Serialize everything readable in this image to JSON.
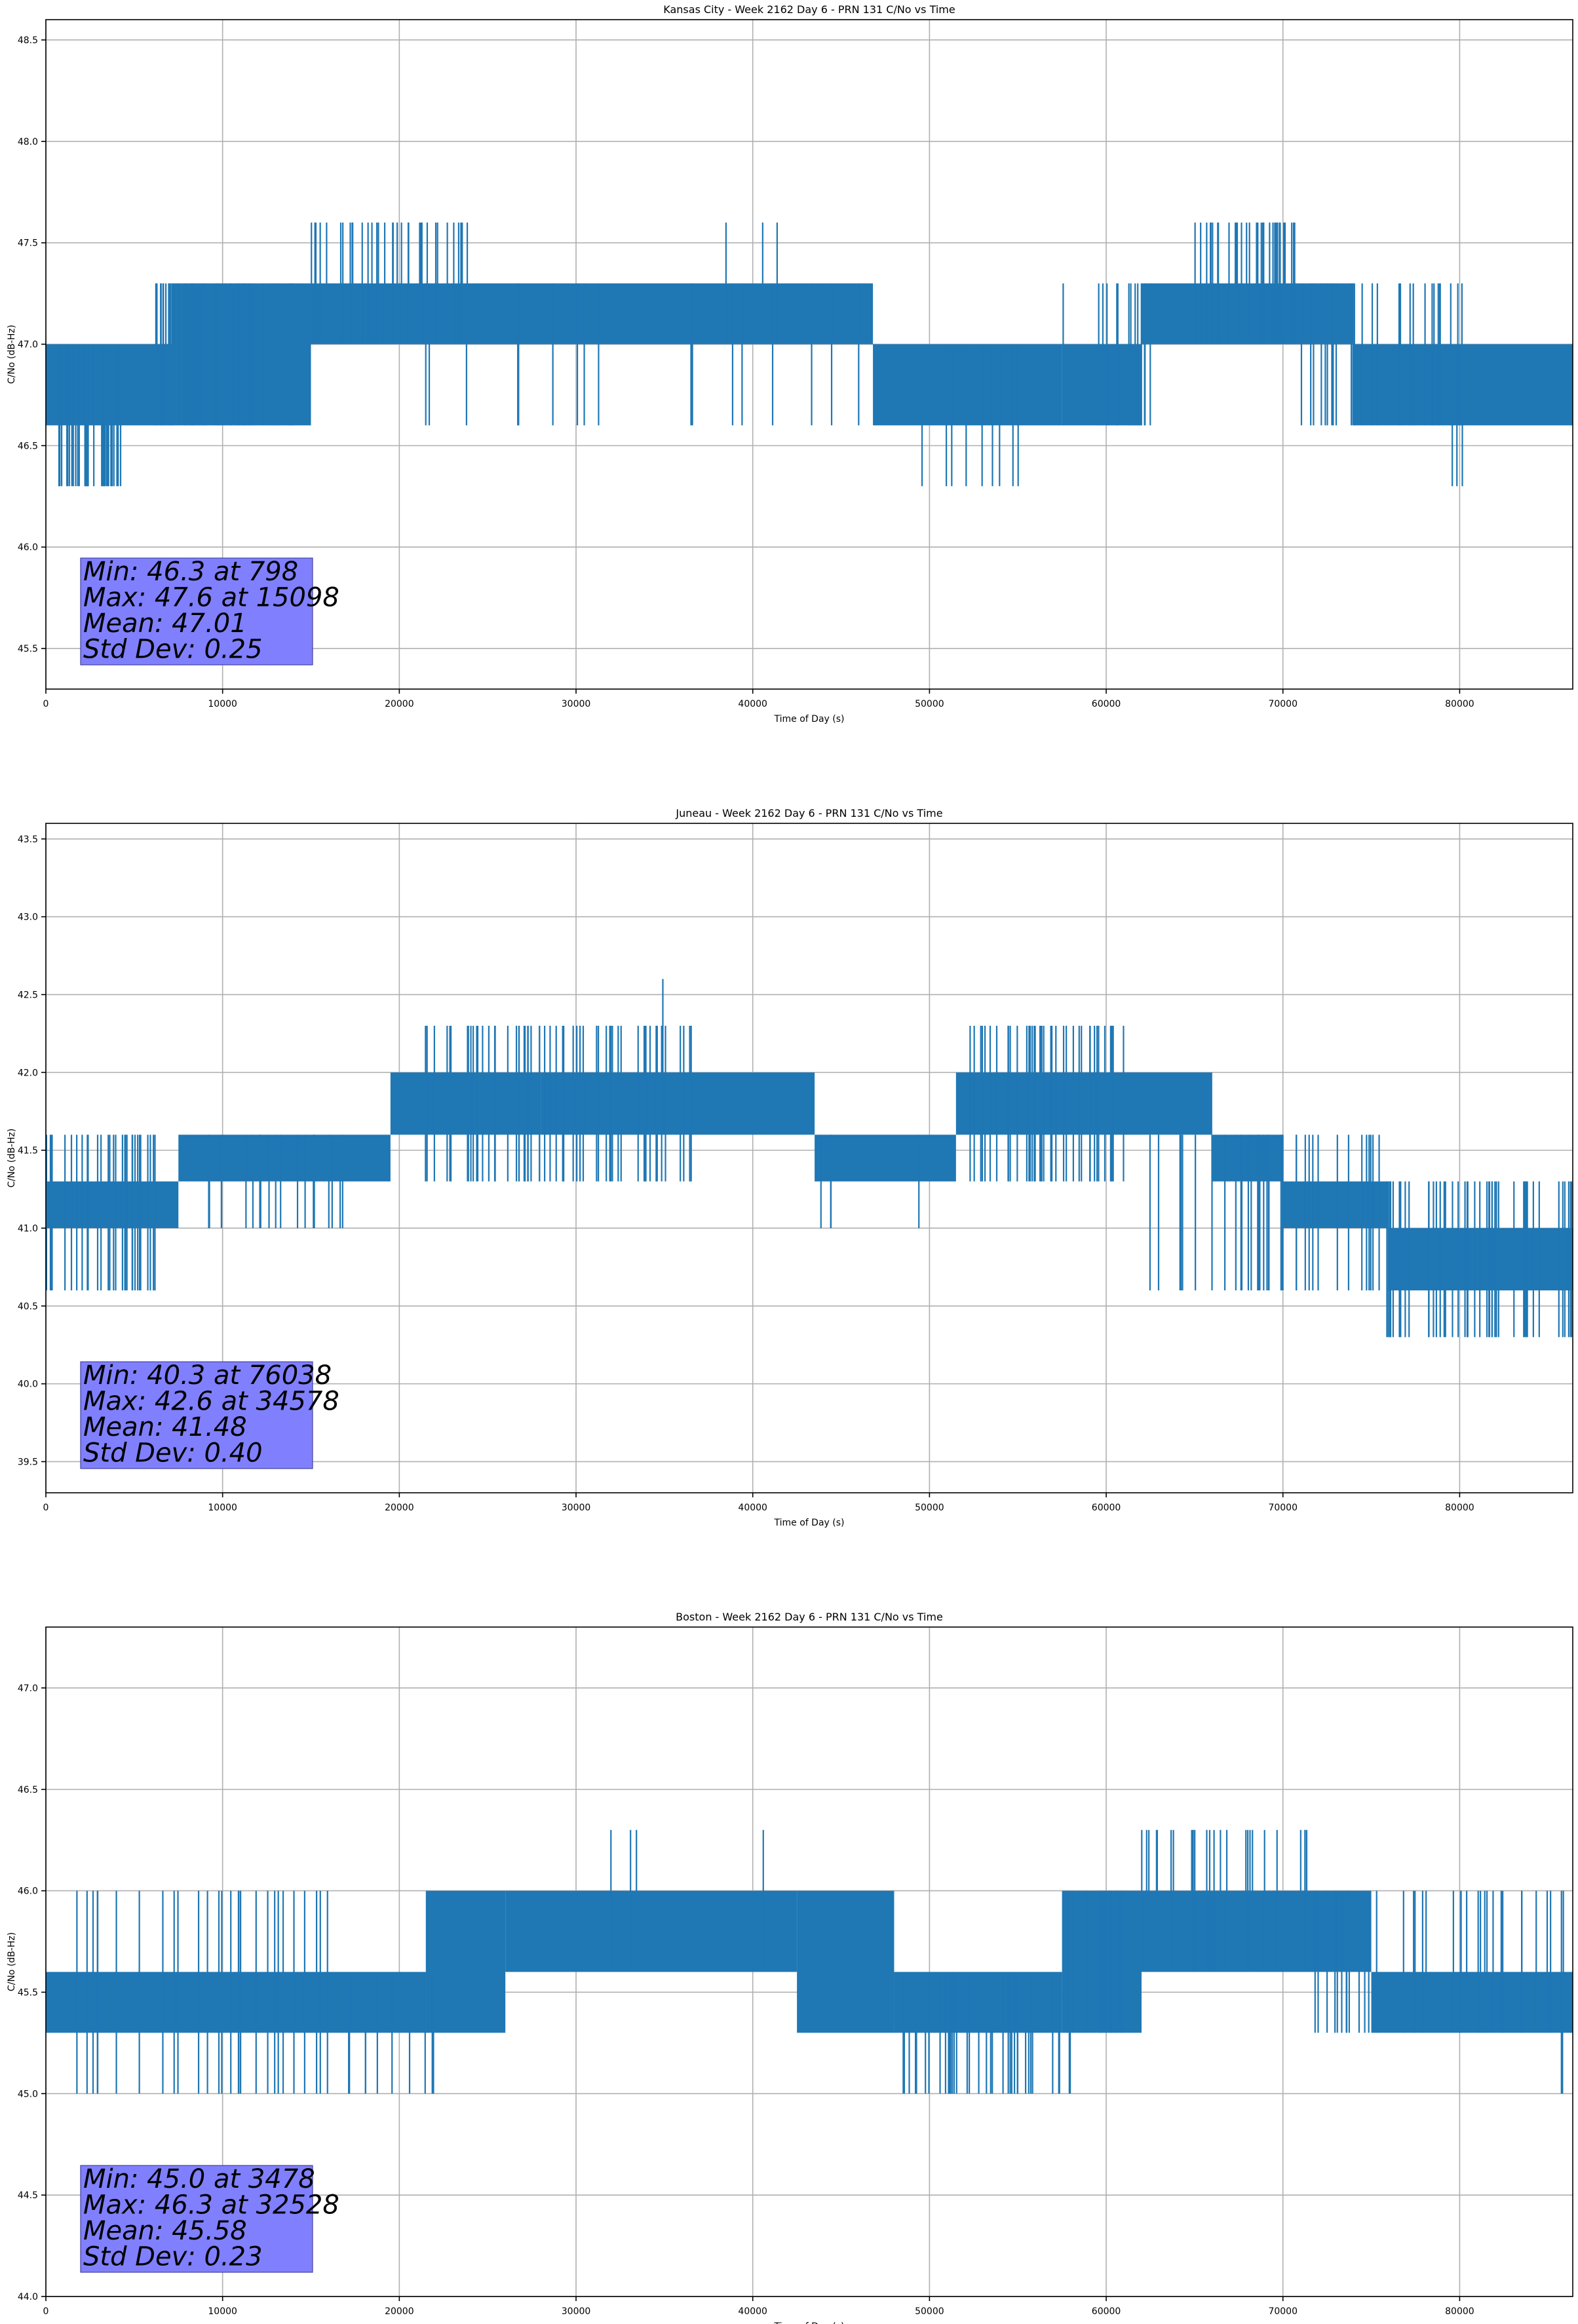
{
  "chart_data": [
    {
      "type": "line",
      "title": "Kansas City - Week 2162 Day 6 - PRN 131 C/No vs Time",
      "xlabel": "Time of Day (s)",
      "ylabel": "C/No (dB-Hz)",
      "xlim": [
        0,
        86400
      ],
      "ylim": [
        45.3,
        48.6
      ],
      "xticks": [
        0,
        10000,
        20000,
        30000,
        40000,
        50000,
        60000,
        70000,
        80000
      ],
      "yticks": [
        45.5,
        46.0,
        46.5,
        47.0,
        47.5,
        48.0,
        48.5
      ],
      "ytick_decimals": 1,
      "grid": true,
      "color": "#1f77b4",
      "stats": [
        "Min: 46.3 at 798",
        "Max: 47.6 at 15098",
        "Mean: 47.01",
        "Std Dev: 0.25"
      ],
      "bands": [
        {
          "x": [
            0,
            7200
          ],
          "y": [
            46.6,
            47.0
          ]
        },
        {
          "x": [
            7200,
            15000
          ],
          "y": [
            46.6,
            47.3
          ]
        },
        {
          "x": [
            15000,
            20500
          ],
          "y": [
            47.0,
            47.3
          ]
        },
        {
          "x": [
            20500,
            46800
          ],
          "y": [
            47.0,
            47.3
          ]
        },
        {
          "x": [
            46800,
            57500
          ],
          "y": [
            46.6,
            47.0
          ]
        },
        {
          "x": [
            57500,
            62000
          ],
          "y": [
            46.6,
            47.0
          ]
        },
        {
          "x": [
            62000,
            74000
          ],
          "y": [
            47.0,
            47.3
          ]
        },
        {
          "x": [
            74000,
            86400
          ],
          "y": [
            46.6,
            47.0
          ]
        }
      ],
      "spikes": [
        {
          "x": [
            500,
            4500
          ],
          "y": [
            46.3,
            47.0
          ],
          "n": 34
        },
        {
          "x": [
            6000,
            14000
          ],
          "y": [
            46.6,
            47.3
          ],
          "n": 60
        },
        {
          "x": [
            15000,
            24000
          ],
          "y": [
            47.0,
            47.6
          ],
          "n": 34
        },
        {
          "x": [
            20000,
            46000
          ],
          "y": [
            46.6,
            47.3
          ],
          "n": 18
        },
        {
          "x": [
            38000,
            42000
          ],
          "y": [
            47.0,
            47.6
          ],
          "n": 3
        },
        {
          "x": [
            46800,
            57500
          ],
          "y": [
            46.3,
            47.0
          ],
          "n": 9
        },
        {
          "x": [
            57500,
            62500
          ],
          "y": [
            46.6,
            47.3
          ],
          "n": 14
        },
        {
          "x": [
            65000,
            71000
          ],
          "y": [
            47.0,
            47.6
          ],
          "n": 32
        },
        {
          "x": [
            71000,
            80500
          ],
          "y": [
            46.6,
            47.3
          ],
          "n": 28
        },
        {
          "x": [
            79500,
            81000
          ],
          "y": [
            46.3,
            47.0
          ],
          "n": 3
        }
      ]
    },
    {
      "type": "line",
      "title": "Juneau - Week 2162 Day 6 - PRN 131 C/No vs Time",
      "xlabel": "Time of Day (s)",
      "ylabel": "C/No (dB-Hz)",
      "xlim": [
        0,
        86400
      ],
      "ylim": [
        39.3,
        43.6
      ],
      "xticks": [
        0,
        10000,
        20000,
        30000,
        40000,
        50000,
        60000,
        70000,
        80000
      ],
      "yticks": [
        39.5,
        40.0,
        40.5,
        41.0,
        41.5,
        42.0,
        42.5,
        43.0,
        43.5
      ],
      "ytick_decimals": 1,
      "grid": true,
      "color": "#1f77b4",
      "stats": [
        "Min: 40.3 at 76038",
        "Max: 42.6 at 34578",
        "Mean: 41.48",
        "Std Dev: 0.40"
      ],
      "bands": [
        {
          "x": [
            0,
            7500
          ],
          "y": [
            41.0,
            41.3
          ]
        },
        {
          "x": [
            7500,
            19500
          ],
          "y": [
            41.3,
            41.6
          ]
        },
        {
          "x": [
            19500,
            28000
          ],
          "y": [
            41.6,
            42.0
          ]
        },
        {
          "x": [
            28000,
            43500
          ],
          "y": [
            41.6,
            42.0
          ]
        },
        {
          "x": [
            43500,
            51500
          ],
          "y": [
            41.3,
            41.6
          ]
        },
        {
          "x": [
            51500,
            66000
          ],
          "y": [
            41.6,
            42.0
          ]
        },
        {
          "x": [
            66000,
            70000
          ],
          "y": [
            41.3,
            41.6
          ]
        },
        {
          "x": [
            70000,
            76000
          ],
          "y": [
            41.0,
            41.3
          ]
        },
        {
          "x": [
            76000,
            86400
          ],
          "y": [
            40.6,
            41.0
          ]
        }
      ],
      "spikes": [
        {
          "x": [
            0,
            6500
          ],
          "y": [
            40.6,
            41.6
          ],
          "n": 30
        },
        {
          "x": [
            7500,
            17000
          ],
          "y": [
            41.0,
            41.6
          ],
          "n": 20
        },
        {
          "x": [
            21000,
            37000
          ],
          "y": [
            41.3,
            42.3
          ],
          "n": 60
        },
        {
          "x": [
            34000,
            35000
          ],
          "y": [
            41.6,
            42.6
          ],
          "n": 1
        },
        {
          "x": [
            42000,
            50500
          ],
          "y": [
            41.0,
            41.6
          ],
          "n": 4
        },
        {
          "x": [
            52000,
            61000
          ],
          "y": [
            41.3,
            42.3
          ],
          "n": 40
        },
        {
          "x": [
            62000,
            75500
          ],
          "y": [
            40.6,
            41.6
          ],
          "n": 38
        },
        {
          "x": [
            75500,
            86400
          ],
          "y": [
            40.3,
            41.3
          ],
          "n": 46
        }
      ]
    },
    {
      "type": "line",
      "title": "Boston - Week 2162 Day 6 - PRN 131 C/No vs Time",
      "xlabel": "Time of Day (s)",
      "ylabel": "C/No (dB-Hz)",
      "xlim": [
        0,
        86400
      ],
      "ylim": [
        44.0,
        47.3
      ],
      "xticks": [
        0,
        10000,
        20000,
        30000,
        40000,
        50000,
        60000,
        70000,
        80000
      ],
      "yticks": [
        44.0,
        44.5,
        45.0,
        45.5,
        46.0,
        46.5,
        47.0
      ],
      "ytick_decimals": 1,
      "grid": true,
      "color": "#1f77b4",
      "stats": [
        "Min: 45.0 at 3478",
        "Max: 46.3 at 32528",
        "Mean: 45.58",
        "Std Dev: 0.23"
      ],
      "bands": [
        {
          "x": [
            0,
            21500
          ],
          "y": [
            45.3,
            45.6
          ]
        },
        {
          "x": [
            21500,
            26000
          ],
          "y": [
            45.3,
            46.0
          ]
        },
        {
          "x": [
            26000,
            42500
          ],
          "y": [
            45.6,
            46.0
          ]
        },
        {
          "x": [
            42500,
            48000
          ],
          "y": [
            45.3,
            46.0
          ]
        },
        {
          "x": [
            48000,
            57500
          ],
          "y": [
            45.3,
            45.6
          ]
        },
        {
          "x": [
            57500,
            62000
          ],
          "y": [
            45.3,
            46.0
          ]
        },
        {
          "x": [
            62000,
            75000
          ],
          "y": [
            45.6,
            46.0
          ]
        },
        {
          "x": [
            75000,
            86400
          ],
          "y": [
            45.3,
            45.6
          ]
        }
      ],
      "spikes": [
        {
          "x": [
            1500,
            16000
          ],
          "y": [
            45.0,
            46.0
          ],
          "n": 28
        },
        {
          "x": [
            15000,
            22000
          ],
          "y": [
            45.0,
            45.6
          ],
          "n": 10
        },
        {
          "x": [
            31500,
            33500
          ],
          "y": [
            45.6,
            46.3
          ],
          "n": 3
        },
        {
          "x": [
            40500,
            40700
          ],
          "y": [
            45.6,
            46.3
          ],
          "n": 1
        },
        {
          "x": [
            48500,
            58000
          ],
          "y": [
            45.0,
            45.6
          ],
          "n": 40
        },
        {
          "x": [
            57500,
            61500
          ],
          "y": [
            45.3,
            46.0
          ],
          "n": 18
        },
        {
          "x": [
            62000,
            71500
          ],
          "y": [
            45.6,
            46.3
          ],
          "n": 26
        },
        {
          "x": [
            71000,
            86000
          ],
          "y": [
            45.3,
            46.0
          ],
          "n": 36
        },
        {
          "x": [
            85500,
            86400
          ],
          "y": [
            45.0,
            45.6
          ],
          "n": 2
        }
      ]
    }
  ]
}
